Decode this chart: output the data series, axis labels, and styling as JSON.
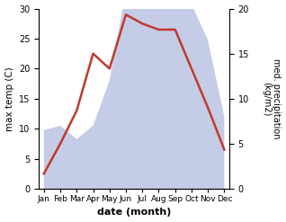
{
  "months": [
    "Jan",
    "Feb",
    "Mar",
    "Apr",
    "May",
    "Jun",
    "Jul",
    "Aug",
    "Sep",
    "Oct",
    "Nov",
    "Dec"
  ],
  "month_positions": [
    0,
    1,
    2,
    3,
    4,
    5,
    6,
    7,
    8,
    9,
    10,
    11
  ],
  "max_temp": [
    2.5,
    7.5,
    13.0,
    22.5,
    20.0,
    29.0,
    27.5,
    26.5,
    26.5,
    20.0,
    13.5,
    6.5
  ],
  "precipitation": [
    6.5,
    7.0,
    5.5,
    7.0,
    12.0,
    22.0,
    28.0,
    22.0,
    21.0,
    20.5,
    16.5,
    8.0
  ],
  "temp_color": "#c0392b",
  "precip_fill_color": "#c5cce8",
  "temp_ylim": [
    0,
    30
  ],
  "precip_ylim": [
    0,
    30
  ],
  "right_ylim": [
    0,
    20
  ],
  "xlabel": "date (month)",
  "ylabel_left": "max temp (C)",
  "ylabel_right": "med. precipitation\n(kg/m2)",
  "temp_yticks": [
    0,
    5,
    10,
    15,
    20,
    25,
    30
  ],
  "precip_yticks": [
    0,
    5,
    10,
    15,
    20
  ],
  "background_color": "#ffffff"
}
